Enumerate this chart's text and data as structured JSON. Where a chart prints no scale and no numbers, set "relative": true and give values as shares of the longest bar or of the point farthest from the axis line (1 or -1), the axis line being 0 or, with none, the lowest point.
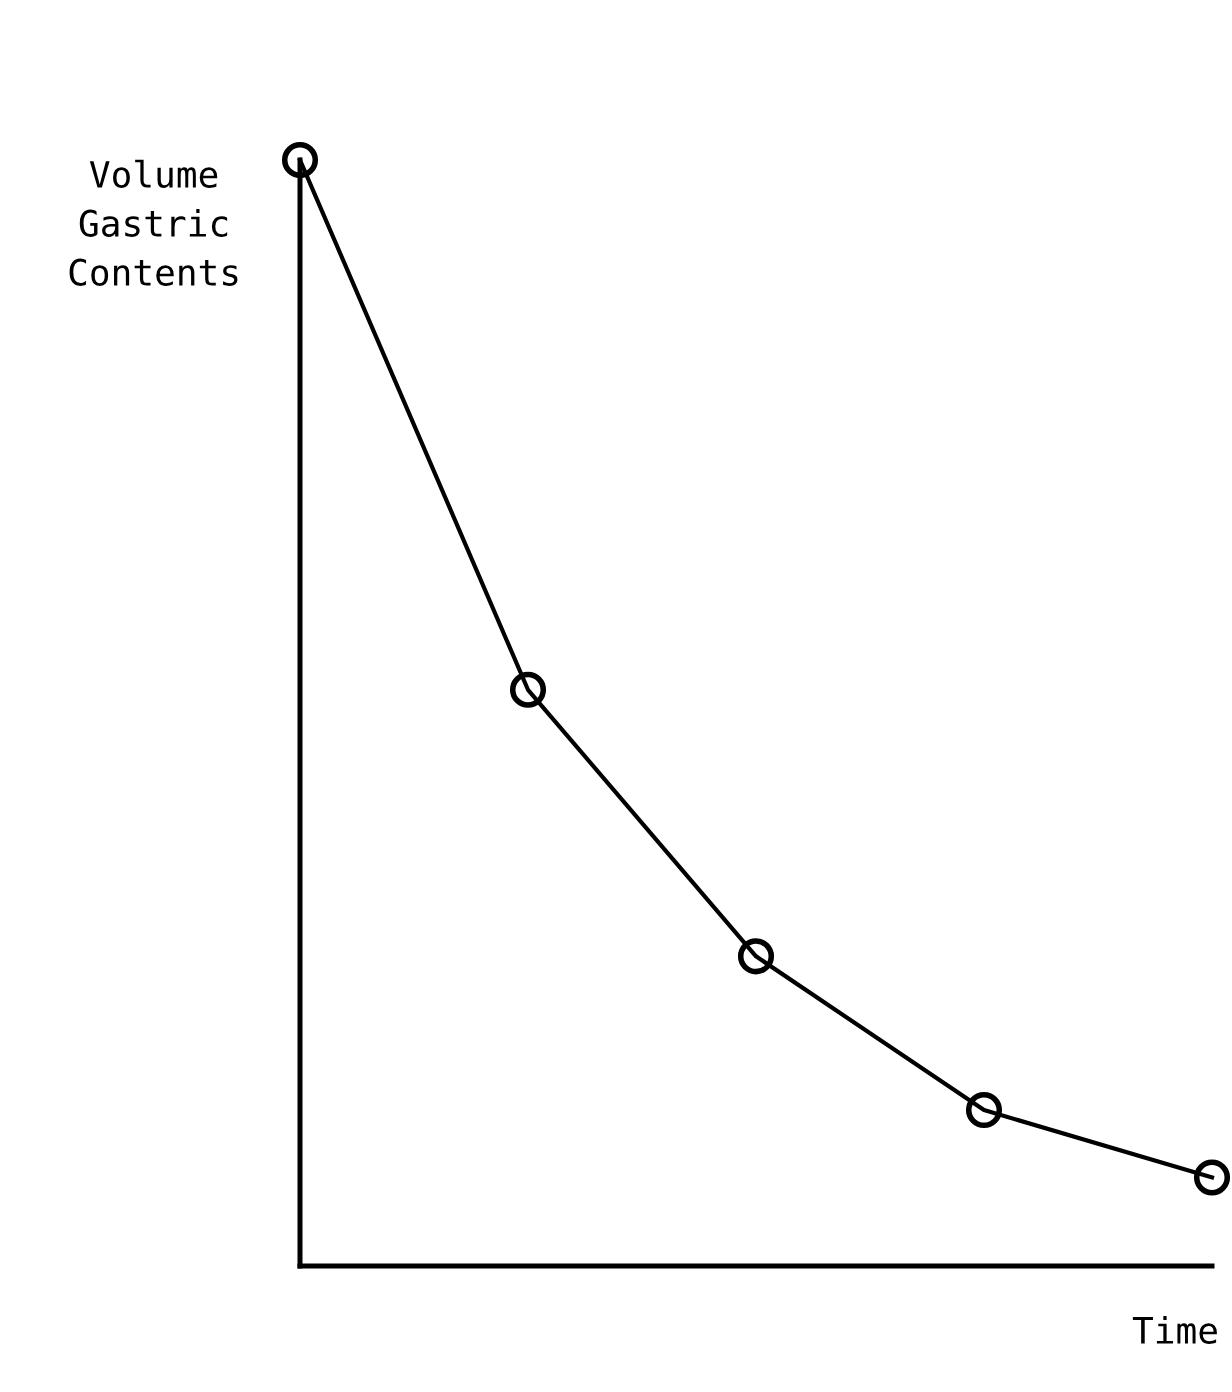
{
  "chart_data": {
    "type": "line",
    "relative": true,
    "xlabel": "Time",
    "ylabel": "Volume\nGastric\nContents",
    "categories": [
      null,
      null,
      null,
      null,
      null
    ],
    "series": [
      {
        "color": "#000000",
        "values": [
          1,
          0.521,
          0.28,
          0.141,
          0.08
        ]
      }
    ],
    "marker": "circle",
    "line_style": "solid",
    "grid": false,
    "legend": false
  }
}
